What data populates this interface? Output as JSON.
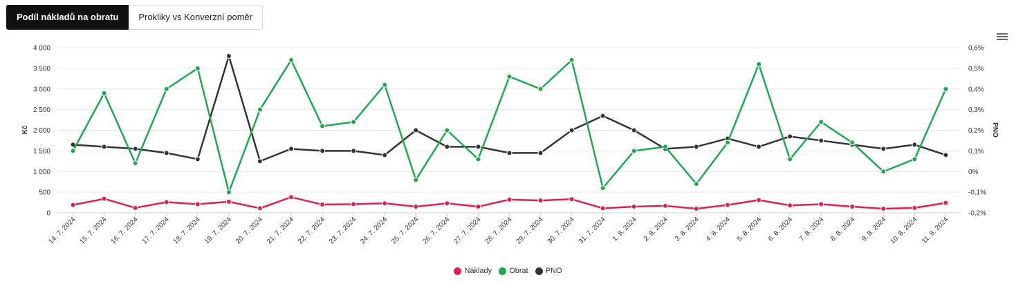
{
  "tabs": [
    {
      "label": "Podíl nákladů na obratu",
      "active": true
    },
    {
      "label": "Prokliky vs Konverzní poměr",
      "active": false
    }
  ],
  "menu_icon": "hamburger-icon",
  "chart_data": {
    "type": "line",
    "title": "",
    "xlabel": "",
    "ylabel": "Kč",
    "y2label": "PNO",
    "ylim": [
      0,
      4000
    ],
    "y2lim": [
      -0.2,
      0.6
    ],
    "y_ticks": [
      "0",
      "500",
      "1 000",
      "1 500",
      "2 000",
      "2 500",
      "3 000",
      "3 500",
      "4 000"
    ],
    "y2_ticks": [
      "-0,2%",
      "-0,1%",
      "0%",
      "0,1%",
      "0,2%",
      "0,3%",
      "0,4%",
      "0,5%",
      "0,6%"
    ],
    "grid": true,
    "legend_position": "bottom",
    "categories": [
      "14. 7. 2024",
      "15. 7. 2024",
      "16. 7. 2024",
      "17. 7. 2024",
      "18. 7. 2024",
      "19. 7. 2024",
      "20. 7. 2024",
      "21. 7. 2024",
      "22. 7. 2024",
      "23. 7. 2024",
      "24. 7. 2024",
      "25. 7. 2024",
      "26. 7. 2024",
      "27. 7. 2024",
      "28. 7. 2024",
      "29. 7. 2024",
      "30. 7. 2024",
      "31. 7. 2024",
      "1. 8. 2024",
      "2. 8. 2024",
      "3. 8. 2024",
      "4. 8. 2024",
      "5. 8. 2024",
      "6. 8. 2024",
      "7. 8. 2024",
      "8. 8. 2024",
      "9. 8. 2024",
      "10. 8. 2024",
      "11. 8. 2024"
    ],
    "series": [
      {
        "name": "Náklady",
        "axis": "left",
        "color": "#e0204c",
        "values": [
          190,
          340,
          120,
          260,
          210,
          270,
          110,
          380,
          200,
          210,
          230,
          150,
          230,
          150,
          320,
          300,
          330,
          110,
          150,
          170,
          100,
          190,
          310,
          180,
          210,
          150,
          100,
          120,
          240
        ]
      },
      {
        "name": "Obrat",
        "axis": "left",
        "color": "#1ea84f",
        "values": [
          1500,
          2900,
          1200,
          3000,
          3500,
          500,
          2500,
          3700,
          2100,
          2200,
          3100,
          800,
          2000,
          1300,
          3300,
          3000,
          3700,
          600,
          1500,
          1600,
          700,
          1700,
          3600,
          1300,
          2200,
          1700,
          1000,
          1300,
          3000
        ]
      },
      {
        "name": "PNO",
        "axis": "right",
        "color": "#333333",
        "values": [
          0.13,
          0.12,
          0.11,
          0.09,
          0.06,
          0.56,
          0.05,
          0.11,
          0.1,
          0.1,
          0.08,
          0.2,
          0.12,
          0.12,
          0.09,
          0.09,
          0.2,
          0.27,
          0.2,
          0.11,
          0.12,
          0.16,
          0.12,
          0.17,
          0.15,
          0.13,
          0.11,
          0.13,
          0.08
        ]
      }
    ]
  }
}
